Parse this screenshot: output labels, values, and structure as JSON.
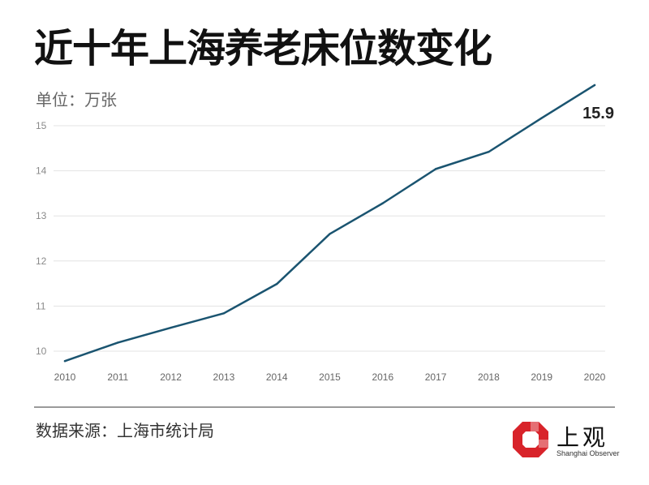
{
  "header": {
    "title": "近十年上海养老床位数变化",
    "unit_label": "单位：万张"
  },
  "footer": {
    "source": "数据来源：上海市统计局"
  },
  "logo": {
    "name_cn": "上观",
    "name_en": "Shanghai Observer",
    "mark_color": "#d8232a"
  },
  "colors": {
    "line": "#1a5470",
    "grid": "#e3e3e3",
    "tick_text": "#8a8a8a",
    "annotation": "#222222"
  },
  "chart_data": {
    "type": "line",
    "title": "近十年上海养老床位数变化",
    "xlabel": "",
    "ylabel": "单位：万张",
    "x": [
      "2010",
      "2011",
      "2012",
      "2013",
      "2014",
      "2015",
      "2016",
      "2017",
      "2018",
      "2019",
      "2020"
    ],
    "series": [
      {
        "values": [
          9.78,
          10.19,
          10.52,
          10.84,
          11.49,
          12.6,
          13.28,
          14.04,
          14.42,
          15.17,
          15.9
        ]
      }
    ],
    "ylim": [
      9.7,
      16.0
    ],
    "yticks": [
      10,
      11,
      12,
      13,
      14,
      15
    ],
    "grid": true,
    "legend": "none",
    "annotations": [
      {
        "x": "2020",
        "y": 15.9,
        "text": "15.9"
      }
    ]
  }
}
